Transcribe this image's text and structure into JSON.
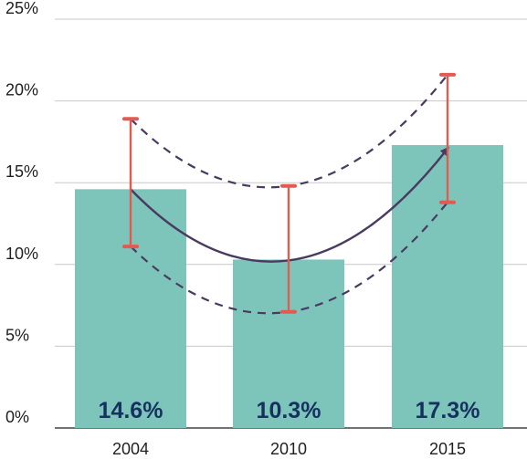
{
  "chart_data": {
    "type": "bar",
    "categories": [
      "2004",
      "2010",
      "2015"
    ],
    "values": [
      14.6,
      10.3,
      17.3
    ],
    "value_labels": [
      "14.6%",
      "10.3%",
      "17.3%"
    ],
    "error_bars": [
      {
        "low": 11.1,
        "high": 18.9
      },
      {
        "low": 7.1,
        "high": 14.8
      },
      {
        "low": 13.8,
        "high": 21.6
      }
    ],
    "ylim": [
      0,
      25
    ],
    "y_ticks": [
      0,
      5,
      10,
      15,
      20,
      25
    ],
    "y_tick_labels": [
      "0%",
      "5%",
      "10%",
      "15%",
      "20%",
      "25%"
    ],
    "grid": true,
    "trend": {
      "curve": "solid with arrowhead",
      "band": "dashed upper and lower curves"
    },
    "colors": {
      "bar": "#7dc5bb",
      "error_bar": "#e25b50",
      "trend": "#4a3a60",
      "grid": "#c8c8c8",
      "axis": "#1f1f1f",
      "bar_label": "#16315f"
    }
  }
}
